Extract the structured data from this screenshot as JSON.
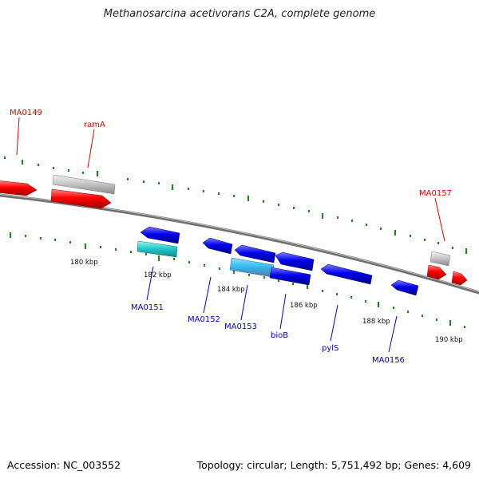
{
  "title": "Methanosarcina acetivorans C2A, complete genome",
  "accession_text": "Accession: NC_003552",
  "summary_text": "Topology: circular; Length: 5,751,492 bp; Genes: 4,609",
  "colors": {
    "forward_gene": "#ff0000",
    "reverse_gene": "#0000ee",
    "rna_gene": "#c8c8c8",
    "cyan_gene": "#22cccc",
    "light_blue_gene": "#33bbee",
    "backbone": "#777777",
    "tick": "#138a13",
    "forward_label": "#dd0000",
    "reverse_label": "#0000cc"
  },
  "kbp_labels": [
    "180 kbp",
    "182 kbp",
    "184 kbp",
    "186 kbp",
    "188 kbp",
    "190 kbp"
  ],
  "gene_labels": {
    "forward": [
      "MA0149",
      "ramA",
      "MA0157"
    ],
    "reverse": [
      "MA0151",
      "MA0152",
      "MA0153",
      "bioB",
      "pylS",
      "MA0156"
    ]
  }
}
